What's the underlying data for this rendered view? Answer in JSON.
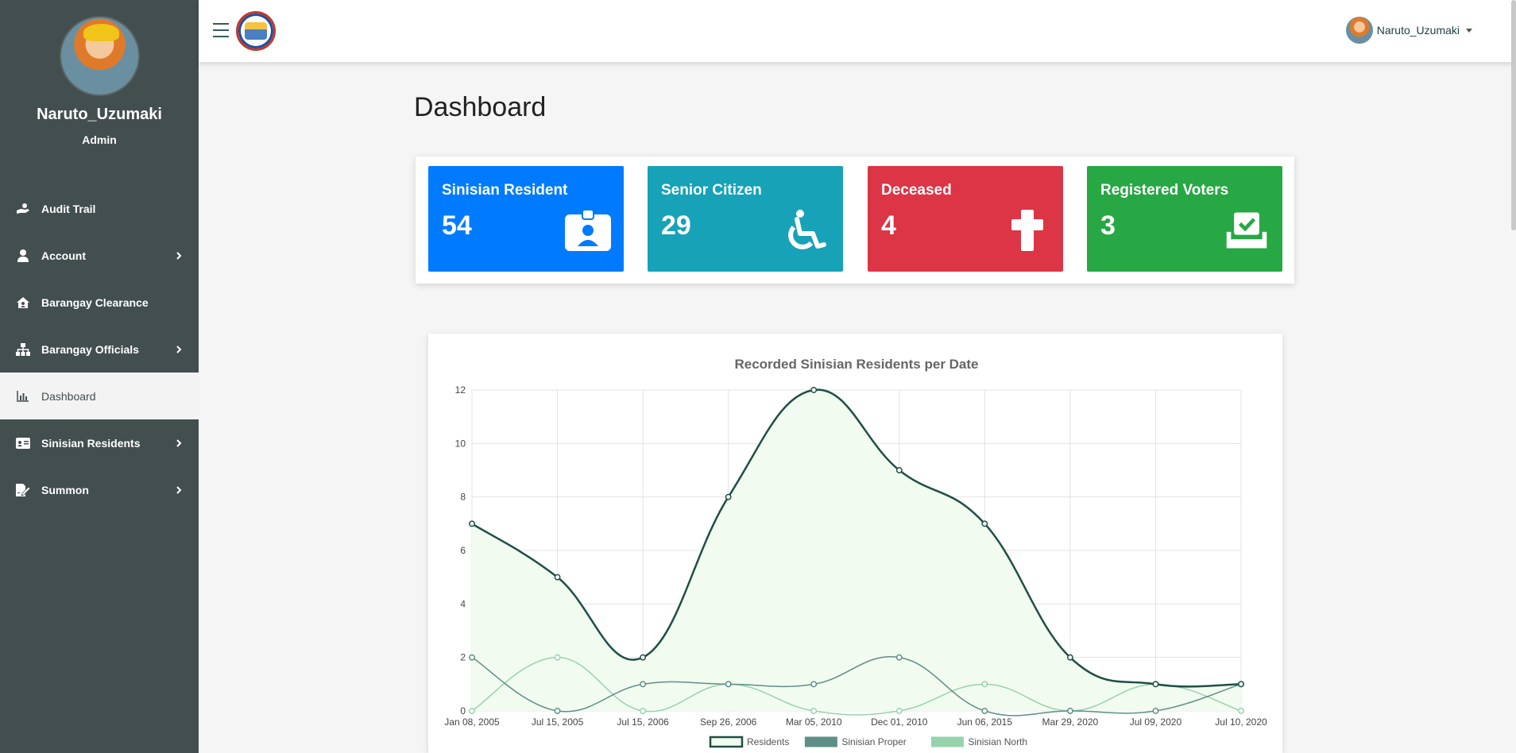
{
  "sidebar": {
    "user_name": "Naruto_Uzumaki",
    "role": "Admin",
    "items": [
      {
        "label": "Audit Trail",
        "icon": "hand-holding-icon",
        "has_submenu": false
      },
      {
        "label": "Account",
        "icon": "user-icon",
        "has_submenu": true
      },
      {
        "label": "Barangay Clearance",
        "icon": "house-user-icon",
        "has_submenu": false
      },
      {
        "label": "Barangay Officials",
        "icon": "sitemap-icon",
        "has_submenu": true
      },
      {
        "label": "Dashboard",
        "icon": "chart-bar-icon",
        "has_submenu": false,
        "active": true
      },
      {
        "label": "Sinisian Residents",
        "icon": "id-card-icon",
        "has_submenu": true
      },
      {
        "label": "Summon",
        "icon": "file-signature-icon",
        "has_submenu": true
      }
    ]
  },
  "topbar": {
    "user_name": "Naruto_Uzumaki"
  },
  "page": {
    "title": "Dashboard"
  },
  "cards": [
    {
      "label": "Sinisian Resident",
      "value": "54",
      "color": "#007bff",
      "icon": "id-badge-icon"
    },
    {
      "label": "Senior Citizen",
      "value": "29",
      "color": "#17a2b8",
      "icon": "wheelchair-icon"
    },
    {
      "label": "Deceased",
      "value": "4",
      "color": "#dc3545",
      "icon": "cross-icon"
    },
    {
      "label": "Registered Voters",
      "value": "3",
      "color": "#28a745",
      "icon": "vote-box-icon"
    }
  ],
  "colors": {
    "sidebar_bg": "#434e4f",
    "residents_line": "#1f4f45",
    "residents_fill": "#f2fbf0",
    "proper_line": "#5e8f86",
    "north_line": "#96d3ad"
  },
  "chart_data": {
    "type": "line",
    "title": "Recorded Sinisian Residents per Date",
    "categories": [
      "Jan 08, 2005",
      "Jul 15, 2005",
      "Jul 15, 2006",
      "Sep 26, 2006",
      "Mar 05, 2010",
      "Dec 01, 2010",
      "Jun 06, 2015",
      "Mar 29, 2020",
      "Jul 09, 2020",
      "Jul 10, 2020"
    ],
    "ylim": [
      0,
      12
    ],
    "yticks": [
      0,
      2,
      4,
      6,
      8,
      10,
      12
    ],
    "grid": true,
    "legend_position": "bottom",
    "series": [
      {
        "name": "Residents",
        "values": [
          7,
          5,
          2,
          8,
          12,
          9,
          7,
          2,
          1,
          1
        ],
        "filled": true
      },
      {
        "name": "Sinisian Proper",
        "values": [
          2,
          0,
          1,
          1,
          1,
          2,
          0,
          0,
          0,
          1
        ],
        "filled": false
      },
      {
        "name": "Sinisian North",
        "values": [
          0,
          2,
          0,
          1,
          0,
          0,
          1,
          0,
          1,
          0
        ],
        "filled": false
      }
    ]
  }
}
